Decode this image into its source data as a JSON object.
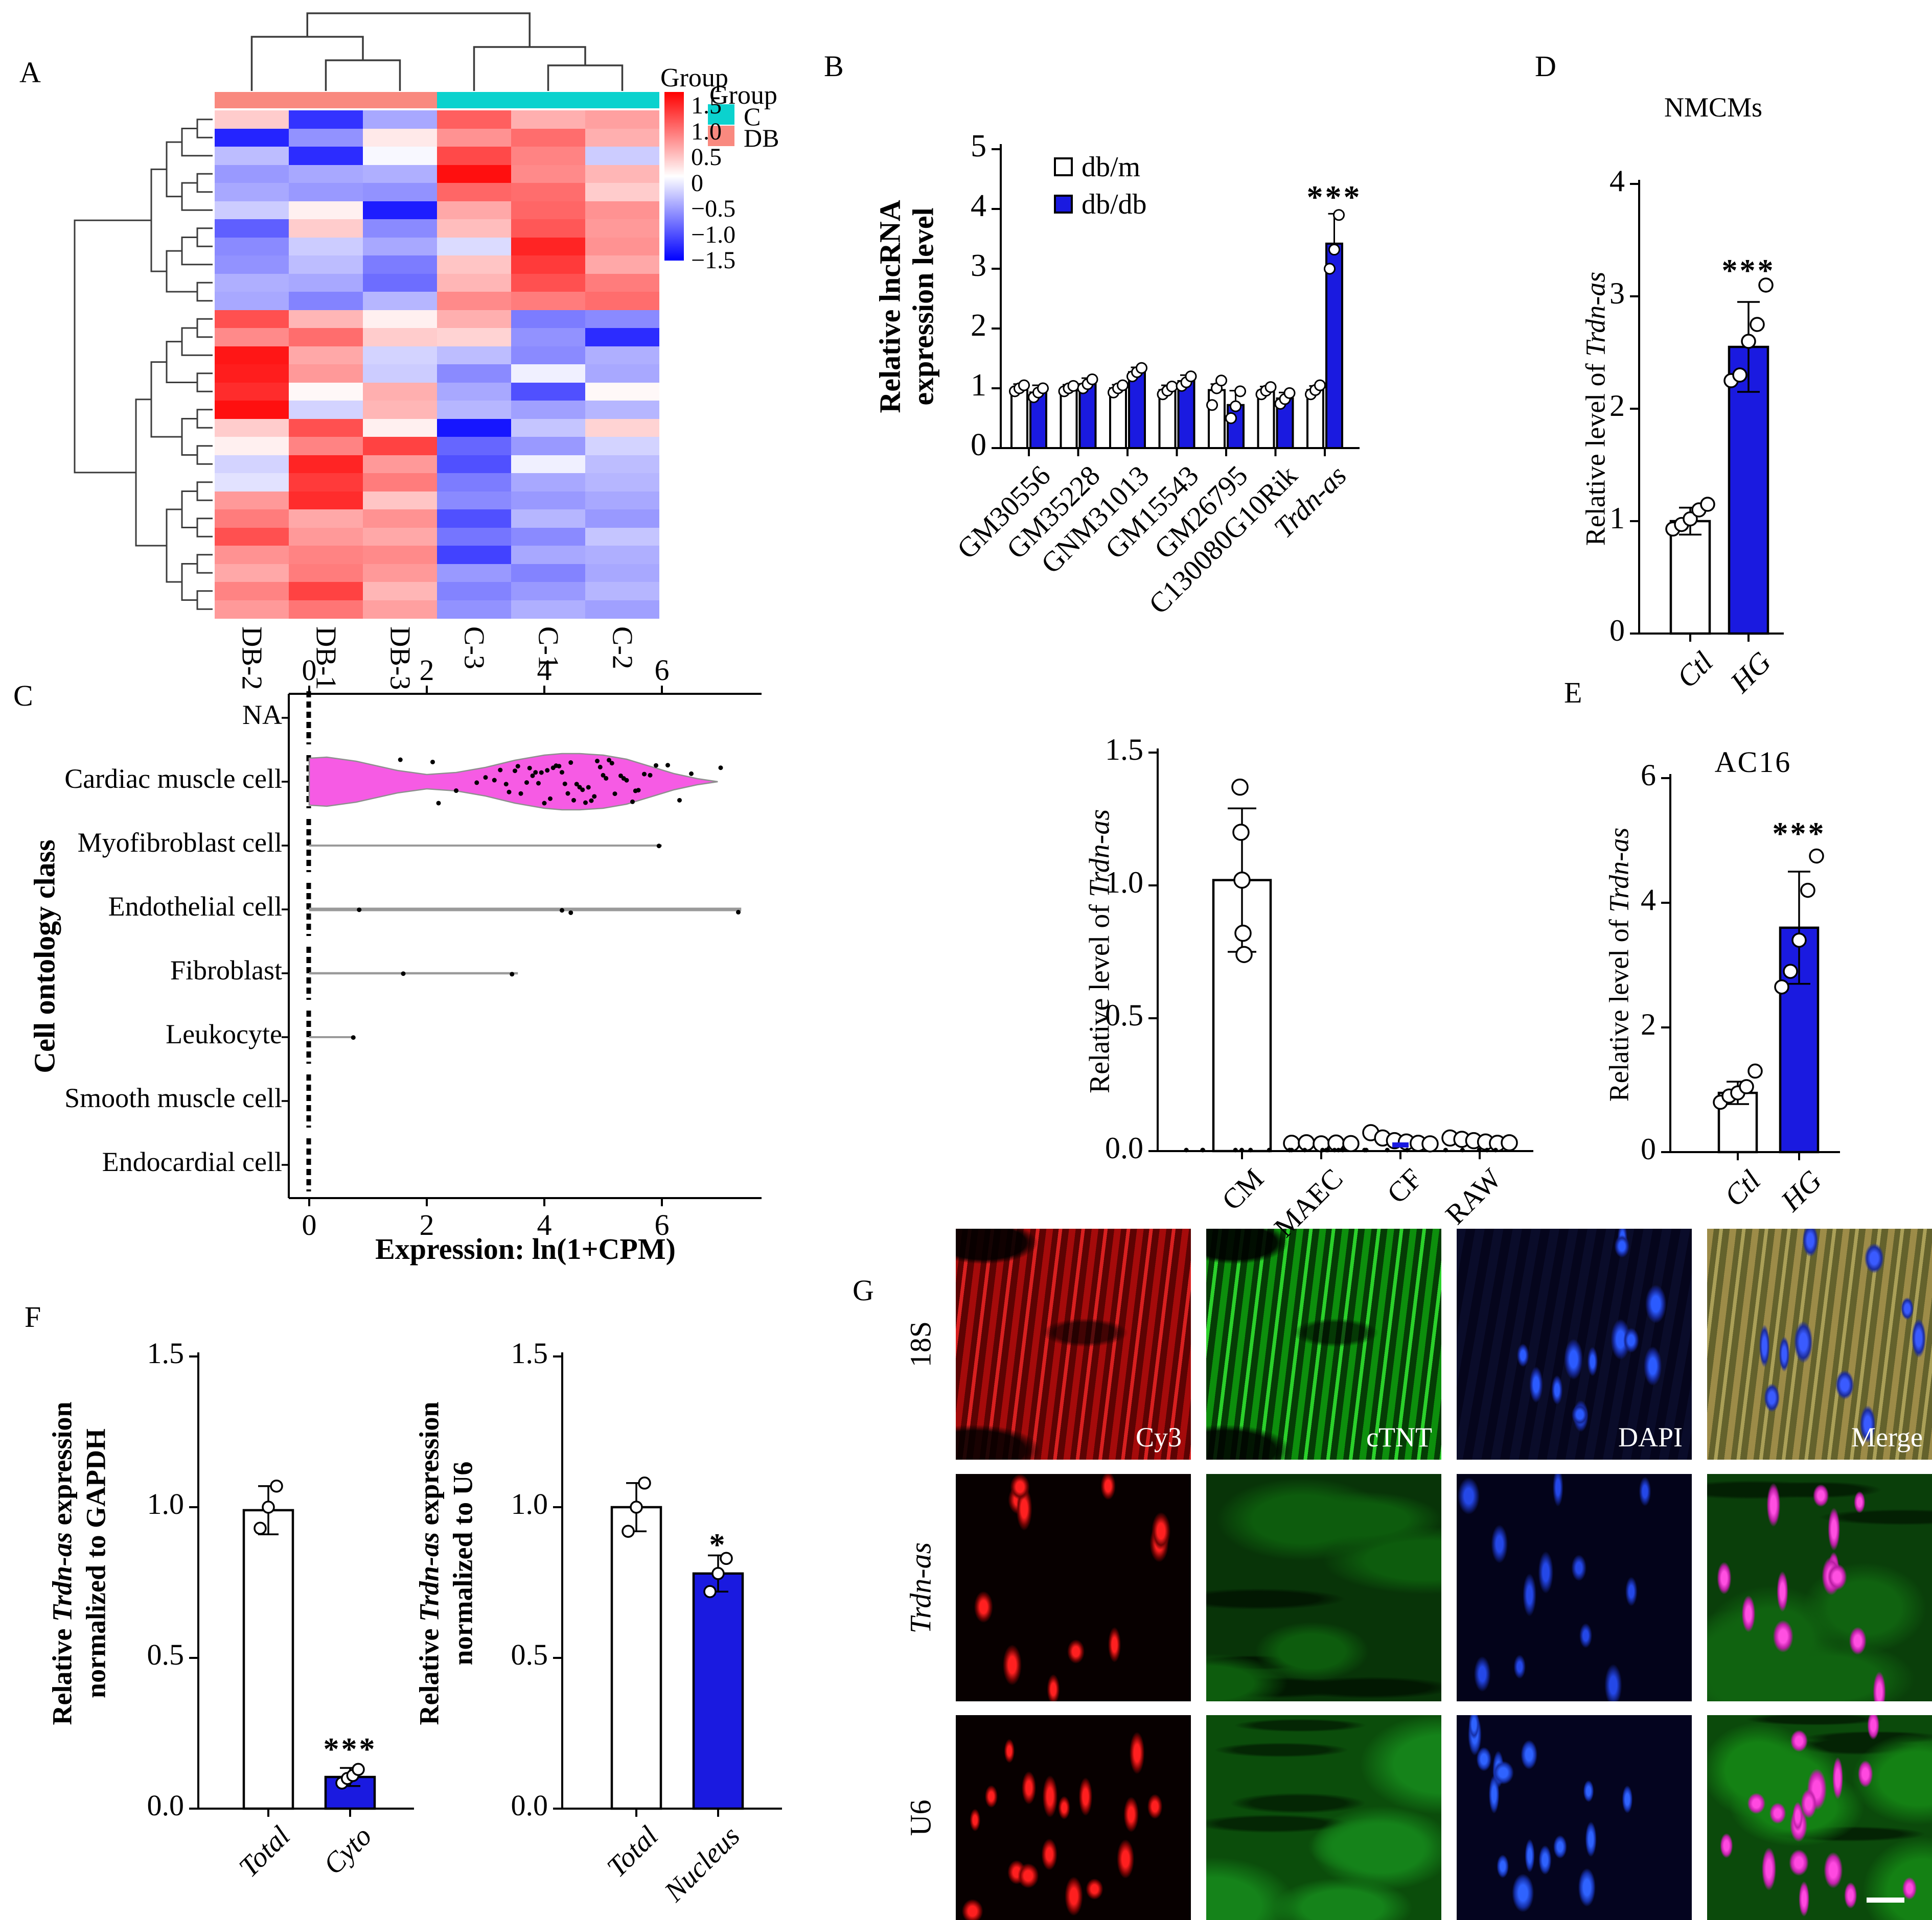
{
  "chart_data": {
    "panelA": {
      "letter": "A",
      "type": "heatmap",
      "columns": [
        "DB-2",
        "DB-1",
        "DB-3",
        "C-3",
        "C-1",
        "C-2"
      ],
      "col_groups": [
        "DB",
        "DB",
        "DB",
        "C",
        "C",
        "C"
      ],
      "scale_range": [
        -1.75,
        1.75
      ],
      "matrix": [
        [
          0.35,
          -1.4,
          -0.6,
          1.1,
          0.55,
          0.65
        ],
        [
          -1.5,
          -0.75,
          0.15,
          0.75,
          1.0,
          0.55
        ],
        [
          -0.45,
          -1.45,
          -0.05,
          1.25,
          0.85,
          -0.35
        ],
        [
          -0.7,
          -0.6,
          -0.55,
          1.65,
          0.8,
          0.5
        ],
        [
          -0.6,
          -0.7,
          -0.75,
          1.05,
          1.0,
          0.35
        ],
        [
          -0.35,
          0.1,
          -1.55,
          0.6,
          1.05,
          0.75
        ],
        [
          -1.1,
          0.35,
          -0.8,
          0.45,
          1.15,
          0.7
        ],
        [
          -0.8,
          -0.35,
          -0.6,
          -0.25,
          1.5,
          0.75
        ],
        [
          -0.75,
          -0.45,
          -0.9,
          0.4,
          1.35,
          0.6
        ],
        [
          -0.55,
          -0.6,
          -1.0,
          0.5,
          1.2,
          0.9
        ],
        [
          -0.6,
          -0.85,
          -0.5,
          0.8,
          0.9,
          1.0
        ],
        [
          1.2,
          0.5,
          0.1,
          0.55,
          -0.9,
          -0.8
        ],
        [
          0.8,
          1.0,
          0.35,
          0.3,
          -0.75,
          -1.45
        ],
        [
          1.6,
          0.6,
          -0.3,
          -0.45,
          -0.8,
          -0.55
        ],
        [
          1.55,
          0.7,
          -0.35,
          -0.8,
          -0.1,
          -0.6
        ],
        [
          1.45,
          0.05,
          0.55,
          -0.6,
          -1.2,
          0.05
        ],
        [
          1.65,
          -0.3,
          0.5,
          -0.5,
          -0.65,
          -0.5
        ],
        [
          0.35,
          1.2,
          0.1,
          -1.6,
          -0.4,
          0.3
        ],
        [
          0.1,
          0.85,
          1.3,
          -1.05,
          -0.7,
          -0.3
        ],
        [
          -0.3,
          1.5,
          0.7,
          -1.2,
          -0.1,
          -0.45
        ],
        [
          -0.2,
          1.35,
          0.9,
          -0.9,
          -0.6,
          -0.5
        ],
        [
          0.7,
          1.45,
          0.4,
          -0.8,
          -0.7,
          -0.6
        ],
        [
          0.9,
          0.6,
          0.75,
          -1.2,
          -0.5,
          -0.7
        ],
        [
          1.2,
          0.7,
          0.6,
          -0.95,
          -0.8,
          -0.4
        ],
        [
          0.75,
          0.85,
          0.8,
          -1.3,
          -0.6,
          -0.55
        ],
        [
          0.6,
          0.9,
          0.7,
          -0.7,
          -0.85,
          -0.6
        ],
        [
          0.85,
          1.3,
          0.5,
          -0.85,
          -0.7,
          -0.5
        ],
        [
          0.7,
          0.95,
          0.65,
          -0.75,
          -0.55,
          -0.65
        ]
      ],
      "colorbar": {
        "title": "Group",
        "ticks": [
          "1.5",
          "1.0",
          "0.5",
          "0",
          "−0.5",
          "−1.0",
          "−1.5"
        ]
      },
      "legend": {
        "title": "Group",
        "items": [
          {
            "label": "C",
            "color": "#0bd2ce"
          },
          {
            "label": "DB",
            "color": "#f9897f"
          }
        ]
      }
    },
    "panelB": {
      "letter": "B",
      "type": "bar",
      "ylabel_lines": [
        "Relative lncRNA",
        "expression level"
      ],
      "yticks": [
        "0",
        "1",
        "2",
        "3",
        "4",
        "5"
      ],
      "ylim": [
        0,
        5
      ],
      "categories": [
        "GM30556",
        "GM35228",
        "GNM31013",
        "GM15543",
        "GM26795",
        "C130080G10Rik",
        "Trdn-as"
      ],
      "italic_categories": [
        "Trdn-as"
      ],
      "legend": [
        {
          "label": "db/m",
          "fill": "#ffffff"
        },
        {
          "label": "db/db",
          "fill": "#1a1ae0"
        }
      ],
      "series": [
        {
          "name": "db/m",
          "values": [
            1.0,
            1.0,
            1.0,
            0.97,
            0.97,
            0.96,
            0.97
          ],
          "errors": [
            0.07,
            0.06,
            0.06,
            0.08,
            0.1,
            0.07,
            0.07
          ],
          "dots": [
            [
              0.95,
              1.0,
              1.05
            ],
            [
              0.95,
              1.0,
              1.04
            ],
            [
              0.93,
              1.0,
              1.05
            ],
            [
              0.9,
              0.96,
              1.03
            ],
            [
              0.72,
              1.0,
              1.13
            ],
            [
              0.9,
              0.96,
              1.02
            ],
            [
              0.9,
              0.97,
              1.05
            ]
          ]
        },
        {
          "name": "db/db",
          "values": [
            0.93,
            1.07,
            1.27,
            1.12,
            0.72,
            0.83,
            3.42
          ],
          "errors": [
            0.12,
            0.1,
            0.08,
            0.1,
            0.24,
            0.1,
            0.5
          ],
          "dots": [
            [
              0.85,
              0.93,
              1.0
            ],
            [
              1.0,
              1.07,
              1.15
            ],
            [
              1.2,
              1.27,
              1.34
            ],
            [
              1.04,
              1.1,
              1.2
            ],
            [
              0.5,
              0.7,
              0.95
            ],
            [
              0.74,
              0.82,
              0.92
            ],
            [
              3.0,
              3.32,
              3.9
            ]
          ]
        }
      ],
      "significance": {
        "category": "Trdn-as",
        "series": "db/db",
        "label": "***"
      }
    },
    "panelC": {
      "letter": "C",
      "type": "violin",
      "ylabel": "Cell ontology class",
      "xlabel": "Expression: ln(1+CPM)",
      "xticks": [
        "0",
        "2",
        "4",
        "6"
      ],
      "xtick_values": [
        0,
        2,
        4,
        6
      ],
      "categories": [
        "NA",
        "Cardiac muscle cell",
        "Myofibroblast cell",
        "Endothelial cell",
        "Fibroblast",
        "Leukocyte",
        "Smooth muscle cell",
        "Endocardial cell"
      ],
      "violin": {
        "category": "Cardiac muscle cell",
        "extent": [
          0,
          6.95
        ],
        "profile_x": [
          0,
          0.3,
          0.8,
          1.5,
          2.0,
          2.5,
          3.0,
          3.5,
          4.0,
          4.3,
          4.6,
          5.0,
          5.4,
          5.8,
          6.2,
          6.6,
          6.95
        ],
        "profile_halfwidth": [
          46,
          48,
          40,
          22,
          14,
          18,
          28,
          42,
          52,
          55,
          55,
          52,
          44,
          30,
          16,
          6,
          0
        ],
        "points": [
          1.55,
          2.1,
          2.2,
          2.5,
          2.85,
          3.0,
          3.15,
          3.25,
          3.35,
          3.4,
          3.5,
          3.55,
          3.6,
          3.7,
          3.75,
          3.8,
          3.85,
          3.9,
          3.95,
          4.0,
          4.05,
          4.1,
          4.15,
          4.2,
          4.25,
          4.3,
          4.35,
          4.4,
          4.45,
          4.5,
          4.55,
          4.6,
          4.65,
          4.7,
          4.75,
          4.8,
          4.85,
          4.9,
          4.95,
          5.0,
          5.05,
          5.1,
          5.15,
          5.2,
          5.3,
          5.35,
          5.4,
          5.5,
          5.55,
          5.6,
          5.7,
          5.8,
          5.9,
          6.1,
          6.3,
          6.5,
          7.0
        ]
      },
      "range_lines": [
        {
          "category": "Myofibroblast cell",
          "end": 6.0,
          "weight": 4,
          "points": [
            5.95
          ]
        },
        {
          "category": "Endothelial cell",
          "end": 7.35,
          "weight": 7,
          "points": [
            0.85,
            4.3,
            4.45,
            7.3
          ]
        },
        {
          "category": "Fibroblast",
          "end": 3.55,
          "weight": 4.5,
          "points": [
            1.6,
            3.45
          ]
        },
        {
          "category": "Leukocyte",
          "end": 0.78,
          "weight": 4,
          "points": [
            0.75
          ]
        }
      ],
      "zero_strip_categories": [
        "NA",
        "Cardiac muscle cell",
        "Myofibroblast cell",
        "Endothelial cell",
        "Fibroblast",
        "Leukocyte",
        "Smooth muscle cell",
        "Endocardial cell"
      ]
    },
    "panelC2": {
      "type": "bar",
      "ylabel_segments": [
        [
          "Relative level of ",
          false
        ],
        [
          "Trdn-as",
          true
        ]
      ],
      "yticks": [
        "0.0",
        "0.5",
        "1.0",
        "1.5"
      ],
      "ylim": [
        0,
        1.5
      ],
      "categories": [
        "CM",
        "MAEC",
        "CF",
        "RAW"
      ],
      "values": [
        1.02,
        0.01,
        0.03,
        0.02
      ],
      "errors": [
        0.27,
        0.008,
        0.02,
        0.012
      ],
      "bar_fills": [
        "#ffffff",
        "none",
        "none",
        "none"
      ],
      "dots": [
        [
          1.37,
          1.2,
          1.02,
          0.82,
          0.74
        ],
        [
          0.01,
          0.012,
          0.008,
          0.011,
          0.009
        ],
        [
          0.05,
          0.03,
          0.02,
          0.015,
          0.01,
          0.008
        ],
        [
          0.03,
          0.025,
          0.02,
          0.015,
          0.01,
          0.012
        ]
      ],
      "baseline_point_count": 26,
      "accent_tick_category": "CF",
      "accent_color": "#1a1ae0"
    },
    "panelD": {
      "letter": "D",
      "type": "bar",
      "title": "NMCMs",
      "ylabel_segments": [
        [
          "Relative level of ",
          false
        ],
        [
          "Trdn-as",
          true
        ]
      ],
      "yticks": [
        "0",
        "1",
        "2",
        "3",
        "4"
      ],
      "ylim": [
        0,
        4
      ],
      "categories": [
        "Ctl",
        "HG"
      ],
      "values": [
        1.0,
        2.55
      ],
      "errors": [
        0.12,
        0.4
      ],
      "bar_fills": [
        "#ffffff",
        "#1a1ae0"
      ],
      "dots": [
        [
          0.93,
          0.97,
          1.02,
          1.1,
          1.15
        ],
        [
          2.25,
          2.3,
          2.6,
          2.75,
          3.1
        ]
      ],
      "significance": {
        "category": "HG",
        "label": "***"
      }
    },
    "panelE": {
      "letter": "E",
      "type": "bar",
      "title": "AC16",
      "ylabel_segments": [
        [
          "Relative level of ",
          false
        ],
        [
          "Trdn-as",
          true
        ]
      ],
      "yticks": [
        "0",
        "2",
        "4",
        "6"
      ],
      "ylim": [
        0,
        6
      ],
      "categories": [
        "Ctl",
        "HG"
      ],
      "values": [
        0.95,
        3.6
      ],
      "errors": [
        0.18,
        0.9
      ],
      "bar_fills": [
        "#ffffff",
        "#1a1ae0"
      ],
      "dots": [
        [
          0.8,
          0.9,
          0.95,
          1.05,
          1.3
        ],
        [
          2.65,
          2.9,
          3.4,
          4.2,
          4.75
        ]
      ],
      "significance": {
        "category": "HG",
        "label": "***"
      }
    },
    "panelF": {
      "letter": "F",
      "charts": [
        {
          "type": "bar",
          "ylabel_line1_segments": [
            [
              "Relative ",
              false
            ],
            [
              "Trdn-as",
              true
            ],
            [
              " expression",
              false
            ]
          ],
          "ylabel_line2": "normalized to GAPDH",
          "yticks": [
            "0.0",
            "0.5",
            "1.0",
            "1.5"
          ],
          "ylim": [
            0,
            1.5
          ],
          "categories": [
            "Total",
            "Cyto"
          ],
          "values": [
            0.99,
            0.105
          ],
          "errors": [
            0.08,
            0.03
          ],
          "bar_fills": [
            "#ffffff",
            "#1a1ae0"
          ],
          "dots": [
            [
              0.93,
              1.0,
              1.07
            ],
            [
              0.085,
              0.1,
              0.11,
              0.13
            ]
          ],
          "significance": {
            "category": "Cyto",
            "label": "***"
          }
        },
        {
          "type": "bar",
          "ylabel_line1_segments": [
            [
              "Relative ",
              false
            ],
            [
              "Trdn-as",
              true
            ],
            [
              " expression",
              false
            ]
          ],
          "ylabel_line2": "normalized to U6",
          "yticks": [
            "0.0",
            "0.5",
            "1.0",
            "1.5"
          ],
          "ylim": [
            0,
            1.5
          ],
          "categories": [
            "Total",
            "Nucleus"
          ],
          "values": [
            1.0,
            0.78
          ],
          "errors": [
            0.08,
            0.06
          ],
          "bar_fills": [
            "#ffffff",
            "#1a1ae0"
          ],
          "dots": [
            [
              0.92,
              1.0,
              1.08
            ],
            [
              0.72,
              0.78,
              0.83
            ]
          ],
          "significance": {
            "category": "Nucleus",
            "label": "*"
          }
        }
      ]
    },
    "panelG": {
      "letter": "G",
      "type": "micrograph-grid",
      "col_labels": [
        "Cy3",
        "cTNT",
        "DAPI",
        "Merge"
      ],
      "rows": [
        {
          "label": "18S",
          "italic": false,
          "cells": [
            "fibers-red",
            "fibers-green",
            "nuclei-blue",
            "merge-tan-blue"
          ]
        },
        {
          "label": "Trdn-as",
          "italic": true,
          "cells": [
            "nuclei-red-sparse",
            "tissue-green-dim",
            "nuclei-blue-dim",
            "tissue-green-magenta"
          ]
        },
        {
          "label": "U6",
          "italic": false,
          "cells": [
            "nuclei-red-many",
            "tissue-green-bright",
            "nuclei-blue-bright",
            "tissue-green-magenta-many"
          ]
        }
      ],
      "has_scale_bar": true
    },
    "colors": {
      "bar_blue": "#1a1ae0",
      "heat_red": "#ff0000",
      "heat_blue": "#0000ff",
      "group_c": "#0bd2ce",
      "group_db": "#f9897f",
      "violin_fill": "#f65be4"
    }
  }
}
